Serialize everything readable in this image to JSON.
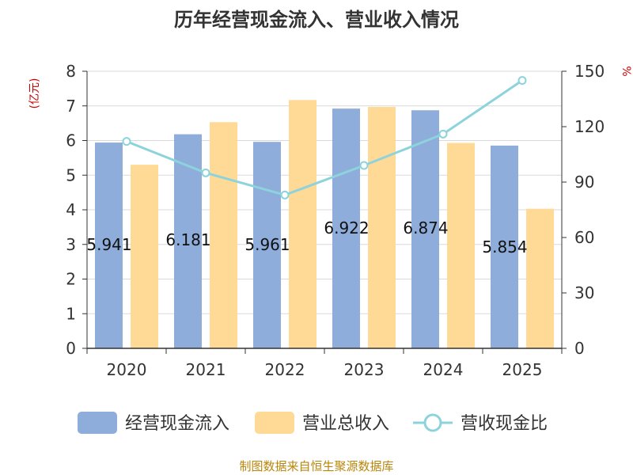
{
  "title": "历年经营现金流入、营业收入情况",
  "source": "制图数据来自恒生聚源数据库",
  "chart_data": {
    "type": "bar",
    "categories": [
      "2020",
      "2021",
      "2022",
      "2023",
      "2024",
      "2025"
    ],
    "series": [
      {
        "name": "经营现金流入",
        "type": "bar",
        "axis": "left",
        "color": "#8EADDB",
        "values": [
          5.941,
          6.181,
          5.961,
          6.922,
          6.874,
          5.854
        ],
        "data_labels": [
          "5.941",
          "6.181",
          "5.961",
          "6.922",
          "6.874",
          "5.854"
        ]
      },
      {
        "name": "营业总收入",
        "type": "bar",
        "axis": "left",
        "color": "#FFD996",
        "values": [
          5.3,
          6.53,
          7.17,
          6.97,
          5.93,
          4.03
        ]
      },
      {
        "name": "营收现金比",
        "type": "line",
        "axis": "right",
        "color": "#8DD3DC",
        "values": [
          112,
          95,
          83,
          99,
          116,
          145
        ]
      }
    ],
    "left_axis": {
      "label": "(亿元)",
      "ylim": [
        0,
        8
      ],
      "ticks": [
        "0",
        "1",
        "2",
        "3",
        "4",
        "5",
        "6",
        "7",
        "8"
      ]
    },
    "right_axis": {
      "label": "%",
      "ylim": [
        0,
        150
      ],
      "ticks": [
        "0",
        "30",
        "60",
        "90",
        "120",
        "150"
      ]
    },
    "grid": true,
    "legend_position": "bottom",
    "colors": {
      "axis_label": "#CC0000",
      "source": "#B8860B"
    }
  }
}
